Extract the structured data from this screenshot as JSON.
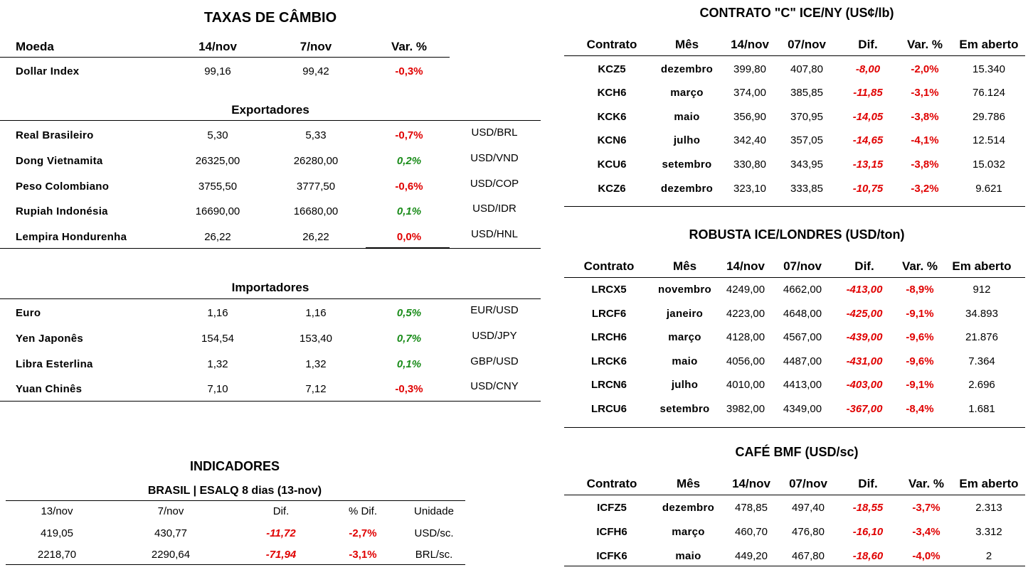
{
  "fx": {
    "title": "TAXAS DE CÂMBIO",
    "headers": [
      "Moeda",
      "14/nov",
      "7/nov",
      "Var. %"
    ],
    "dollar_index": {
      "name": "Dollar Index",
      "v1": "99,16",
      "v2": "99,42",
      "var": "-0,3%"
    },
    "exporters_title": "Exportadores",
    "exporters": [
      {
        "name": "Real Brasileiro",
        "v1": "5,30",
        "v2": "5,33",
        "var": "-0,7%",
        "pair": "USD/BRL",
        "dir": "neg"
      },
      {
        "name": "Dong Vietnamita",
        "v1": "26325,00",
        "v2": "26280,00",
        "var": "0,2%",
        "pair": "USD/VND",
        "dir": "pos"
      },
      {
        "name": "Peso Colombiano",
        "v1": "3755,50",
        "v2": "3777,50",
        "var": "-0,6%",
        "pair": "USD/COP",
        "dir": "neg"
      },
      {
        "name": "Rupiah Indonésia",
        "v1": "16690,00",
        "v2": "16680,00",
        "var": "0,1%",
        "pair": "USD/IDR",
        "dir": "pos"
      },
      {
        "name": "Lempira Hondurenha",
        "v1": "26,22",
        "v2": "26,22",
        "var": "0,0%",
        "pair": "USD/HNL",
        "dir": "neg"
      }
    ],
    "importers_title": "Importadores",
    "importers": [
      {
        "name": "Euro",
        "v1": "1,16",
        "v2": "1,16",
        "var": "0,5%",
        "pair": "EUR/USD",
        "dir": "pos"
      },
      {
        "name": "Yen Japonês",
        "v1": "154,54",
        "v2": "153,40",
        "var": "0,7%",
        "pair": "USD/JPY",
        "dir": "pos"
      },
      {
        "name": "Libra Esterlina",
        "v1": "1,32",
        "v2": "1,32",
        "var": "0,1%",
        "pair": "GBP/USD",
        "dir": "pos"
      },
      {
        "name": "Yuan Chinês",
        "v1": "7,10",
        "v2": "7,12",
        "var": "-0,3%",
        "pair": "USD/CNY",
        "dir": "neg"
      }
    ]
  },
  "indicators": {
    "title": "INDICADORES",
    "subtitle": "BRASIL | ESALQ 8 dias (13-nov)",
    "headers": [
      "13/nov",
      "7/nov",
      "Dif.",
      "% Dif.",
      "Unidade"
    ],
    "rows": [
      [
        "419,05",
        "430,77",
        "-11,72",
        "-2,7%",
        "USD/sc."
      ],
      [
        "2218,70",
        "2290,64",
        "-71,94",
        "-3,1%",
        "BRL/sc."
      ]
    ]
  },
  "contract_c": {
    "title": "CONTRATO \"C\" ICE/NY (US¢/lb)",
    "headers": [
      "Contrato",
      "Mês",
      "14/nov",
      "07/nov",
      "Dif.",
      "Var. %",
      "Em aberto"
    ],
    "rows": [
      [
        "KCZ5",
        "dezembro",
        "399,80",
        "407,80",
        "-8,00",
        "-2,0%",
        "15.340"
      ],
      [
        "KCH6",
        "março",
        "374,00",
        "385,85",
        "-11,85",
        "-3,1%",
        "76.124"
      ],
      [
        "KCK6",
        "maio",
        "356,90",
        "370,95",
        "-14,05",
        "-3,8%",
        "29.786"
      ],
      [
        "KCN6",
        "julho",
        "342,40",
        "357,05",
        "-14,65",
        "-4,1%",
        "12.514"
      ],
      [
        "KCU6",
        "setembro",
        "330,80",
        "343,95",
        "-13,15",
        "-3,8%",
        "15.032"
      ],
      [
        "KCZ6",
        "dezembro",
        "323,10",
        "333,85",
        "-10,75",
        "-3,2%",
        "9.621"
      ]
    ]
  },
  "robusta": {
    "title": "ROBUSTA ICE/LONDRES (USD/ton)",
    "headers": [
      "Contrato",
      "Mês",
      "14/nov",
      "07/nov",
      "Dif.",
      "Var. %",
      "Em aberto"
    ],
    "rows": [
      [
        "LRCX5",
        "novembro",
        "4249,00",
        "4662,00",
        "-413,00",
        "-8,9%",
        "912"
      ],
      [
        "LRCF6",
        "janeiro",
        "4223,00",
        "4648,00",
        "-425,00",
        "-9,1%",
        "34.893"
      ],
      [
        "LRCH6",
        "março",
        "4128,00",
        "4567,00",
        "-439,00",
        "-9,6%",
        "21.876"
      ],
      [
        "LRCK6",
        "maio",
        "4056,00",
        "4487,00",
        "-431,00",
        "-9,6%",
        "7.364"
      ],
      [
        "LRCN6",
        "julho",
        "4010,00",
        "4413,00",
        "-403,00",
        "-9,1%",
        "2.696"
      ],
      [
        "LRCU6",
        "setembro",
        "3982,00",
        "4349,00",
        "-367,00",
        "-8,4%",
        "1.681"
      ]
    ]
  },
  "bmf": {
    "title": "CAFÉ BMF (USD/sc)",
    "headers": [
      "Contrato",
      "Mês",
      "14/nov",
      "07/nov",
      "Dif.",
      "Var. %",
      "Em aberto"
    ],
    "rows": [
      [
        "ICFZ5",
        "dezembro",
        "478,85",
        "497,40",
        "-18,55",
        "-3,7%",
        "2.313"
      ],
      [
        "ICFH6",
        "março",
        "460,70",
        "476,80",
        "-16,10",
        "-3,4%",
        "3.312"
      ],
      [
        "ICFK6",
        "maio",
        "449,20",
        "467,80",
        "-18,60",
        "-4,0%",
        "2"
      ]
    ]
  },
  "colors": {
    "negative": "#e00000",
    "positive": "#1a8c1a"
  }
}
